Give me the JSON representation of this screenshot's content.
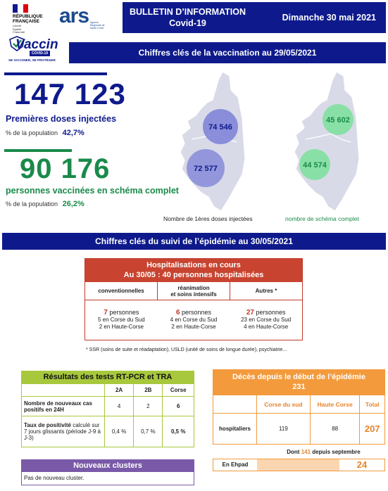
{
  "header": {
    "rf_logo": [
      "RÉPUBLIQUE",
      "FRANÇAISE"
    ],
    "rf_motto": [
      "Liberté",
      "Égalité",
      "Fraternité"
    ],
    "ars_logo": "ars",
    "ars_sub": "Agence Régionale de Santé Corse",
    "title_line1": "BULLETIN D’INFORMATION",
    "title_line2": "Covid-19",
    "date": "Dimanche 30 mai 2021"
  },
  "vaccin_logo": {
    "word": "Vaccin",
    "badge": "COVID-19",
    "tagline": "SE VACCINER, SE PROTÉGER"
  },
  "vaccination": {
    "title": "Chiffres clés de la vaccination au 29/05/2021",
    "first_doses": "147 123",
    "first_doses_label": "Premières doses injectées",
    "first_pct_label": "% de la population",
    "first_pct": "42,7%",
    "complete": "90 176",
    "complete_label": "personnes vaccinées en schéma complet",
    "complete_pct_label": "% de la population",
    "complete_pct": "26,2%"
  },
  "maps": {
    "doses_north": "74 546",
    "doses_south": "72 577",
    "doses_caption": "Nombre de 1ères doses injectées",
    "complete_north": "45 602",
    "complete_south": "44 574",
    "complete_caption": "nombre de schéma complet",
    "colors": {
      "blue_bubble": "#7b7fd6",
      "green_bubble": "#7fe0a0",
      "land": "#d9dae8"
    }
  },
  "epidemic": {
    "title": "Chiffres clés du suivi de l’épidémie  au 30/05/2021"
  },
  "hospitalisations": {
    "title_line1": "Hospitalisations en cours",
    "title_line2": "Au 30/05 : 40 personnes hospitalisées",
    "columns": [
      {
        "header": "conventionnelles",
        "count": "7",
        "unit": " personnes",
        "line1": "5 en Corse du Sud",
        "line2": "2 en Haute-Corse"
      },
      {
        "header": "réanimation\net soins intensifs",
        "count": "6",
        "unit": " personnes",
        "line1": "4 en Corse du Sud",
        "line2": "2 en Haute-Corse"
      },
      {
        "header": "Autres *",
        "count": "27",
        "unit": " personnes",
        "line1": "23 en Corse du Sud",
        "line2": "4 en Haute-Corse"
      }
    ],
    "note": "* SSR (soins de suite et réadaptation), USLD (unité de soins de longue durée), psychiatrie..."
  },
  "tests": {
    "title": "Résultats des tests RT-PCR et TRA",
    "headers": [
      "",
      "2A",
      "2B",
      "Corse"
    ],
    "row1": {
      "label": "Nombre de nouveaux cas positifs en 24H",
      "v2a": "4",
      "v2b": "2",
      "corse": "6"
    },
    "row2": {
      "label_bold": "Taux de positivité",
      "label_rest": " calculé sur 7 jours glissants (période J-9 à J-3)",
      "v2a": "0,4 %",
      "v2b": "0,7 %",
      "corse": "0,5 %"
    }
  },
  "deaths": {
    "title_line1": "Décès depuis le début de l’épidémie",
    "title_line2": "231",
    "headers": [
      "",
      "Corse du sud",
      "Haute Corse",
      "Total"
    ],
    "row_label": "hospitaliers",
    "sud": "119",
    "haute": "88",
    "total": "207",
    "dont_prefix": "Dont ",
    "dont_value": "141",
    "dont_suffix": " depuis septembre",
    "ehpad_label": "En Ehpad",
    "ehpad_total": "24"
  },
  "clusters": {
    "title": "Nouveaux clusters",
    "text": "Pas de nouveau cluster."
  }
}
